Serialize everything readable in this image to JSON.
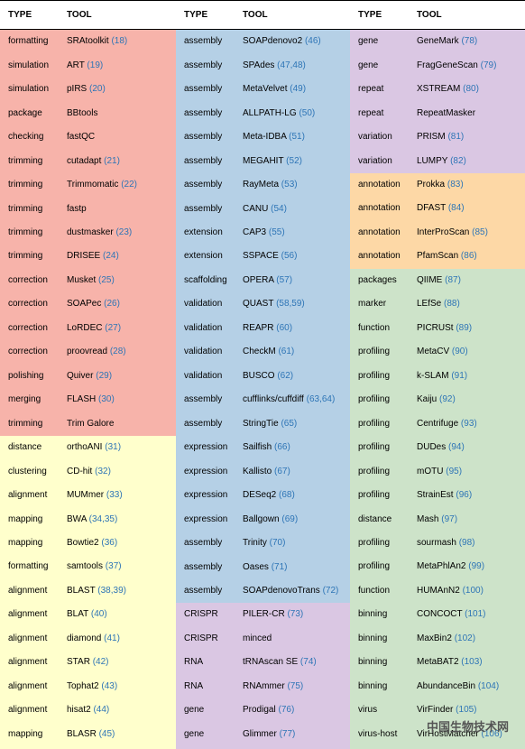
{
  "headers": [
    "TYPE",
    "TOOL"
  ],
  "columns": [
    {
      "sections": [
        {
          "color": "#f7b3aa",
          "rows": [
            {
              "type": "formatting",
              "tool": "SRAtoolkit",
              "ref": "(18)"
            },
            {
              "type": "simulation",
              "tool": "ART",
              "ref": "(19)"
            },
            {
              "type": "simulation",
              "tool": "pIRS",
              "ref": "(20)"
            },
            {
              "type": "package",
              "tool": "BBtools"
            },
            {
              "type": "checking",
              "tool": "fastQC"
            },
            {
              "type": "trimming",
              "tool": "cutadapt",
              "ref": "(21)"
            },
            {
              "type": "trimming",
              "tool": "Trimmomatic",
              "ref": "(22)"
            },
            {
              "type": "trimming",
              "tool": "fastp"
            },
            {
              "type": "trimming",
              "tool": "dustmasker",
              "ref": "(23)"
            },
            {
              "type": "trimming",
              "tool": "DRISEE",
              "ref": "(24)"
            },
            {
              "type": "correction",
              "tool": "Musket",
              "ref": "(25)"
            },
            {
              "type": "correction",
              "tool": "SOAPec",
              "ref": "(26)"
            },
            {
              "type": "correction",
              "tool": "LoRDEC",
              "ref": "(27)"
            },
            {
              "type": "correction",
              "tool": "proovread",
              "ref": "(28)"
            },
            {
              "type": "polishing",
              "tool": "Quiver",
              "ref": "(29)"
            },
            {
              "type": "merging",
              "tool": "FLASH",
              "ref": "(30)"
            },
            {
              "type": "trimming",
              "tool": "Trim Galore"
            }
          ]
        },
        {
          "color": "#ffffcc",
          "rows": [
            {
              "type": "distance",
              "tool": "orthoANI",
              "ref": "(31)"
            },
            {
              "type": "clustering",
              "tool": "CD-hit",
              "ref": "(32)"
            },
            {
              "type": "alignment",
              "tool": "MUMmer",
              "ref": "(33)"
            },
            {
              "type": "mapping",
              "tool": "BWA",
              "ref": "(34,35)"
            },
            {
              "type": "mapping",
              "tool": "Bowtie2",
              "ref": "(36)"
            },
            {
              "type": "formatting",
              "tool": "samtools",
              "ref": "(37)"
            },
            {
              "type": "alignment",
              "tool": "BLAST",
              "ref": "(38,39)"
            },
            {
              "type": "alignment",
              "tool": "BLAT",
              "ref": "(40)"
            },
            {
              "type": "alignment",
              "tool": "diamond",
              "ref": "(41)"
            },
            {
              "type": "alignment",
              "tool": "STAR",
              "ref": "(42)"
            },
            {
              "type": "alignment",
              "tool": "Tophat2",
              "ref": "(43)"
            },
            {
              "type": "alignment",
              "tool": "hisat2",
              "ref": "(44)"
            },
            {
              "type": "mapping",
              "tool": "BLASR",
              "ref": "(45)"
            }
          ]
        }
      ]
    },
    {
      "sections": [
        {
          "color": "#b5d0e6",
          "rows": [
            {
              "type": "assembly",
              "tool": "SOAPdenovo2",
              "ref": "(46)"
            },
            {
              "type": "assembly",
              "tool": "SPAdes",
              "ref": "(47,48)"
            },
            {
              "type": "assembly",
              "tool": "MetaVelvet",
              "ref": "(49)"
            },
            {
              "type": "assembly",
              "tool": "ALLPATH-LG",
              "ref": "(50)"
            },
            {
              "type": "assembly",
              "tool": "Meta-IDBA",
              "ref": "(51)"
            },
            {
              "type": "assembly",
              "tool": "MEGAHIT",
              "ref": "(52)"
            },
            {
              "type": "assembly",
              "tool": "RayMeta",
              "ref": "(53)"
            },
            {
              "type": "assembly",
              "tool": "CANU",
              "ref": "(54)"
            },
            {
              "type": "extension",
              "tool": "CAP3",
              "ref": "(55)"
            },
            {
              "type": "extension",
              "tool": "SSPACE",
              "ref": "(56)"
            },
            {
              "type": "scaffolding",
              "tool": "OPERA",
              "ref": "(57)"
            },
            {
              "type": "validation",
              "tool": "QUAST",
              "ref": "(58,59)"
            },
            {
              "type": "validation",
              "tool": "REAPR",
              "ref": "(60)"
            },
            {
              "type": "validation",
              "tool": "CheckM",
              "ref": "(61)"
            },
            {
              "type": "validation",
              "tool": "BUSCO",
              "ref": "(62)"
            },
            {
              "type": "assembly",
              "tool": "cufflinks/cuffdiff",
              "ref": "(63,64)"
            },
            {
              "type": "assembly",
              "tool": "StringTie",
              "ref": "(65)"
            },
            {
              "type": "expression",
              "tool": "Sailfish",
              "ref": "(66)"
            },
            {
              "type": "expression",
              "tool": "Kallisto",
              "ref": "(67)"
            },
            {
              "type": "expression",
              "tool": "DESeq2",
              "ref": "(68)"
            },
            {
              "type": "expression",
              "tool": "Ballgown",
              "ref": "(69)"
            },
            {
              "type": "assembly",
              "tool": "Trinity",
              "ref": "(70)"
            },
            {
              "type": "assembly",
              "tool": "Oases",
              "ref": "(71)"
            },
            {
              "type": "assembly",
              "tool": "SOAPdenovoTrans",
              "ref": "(72)"
            }
          ]
        },
        {
          "color": "#dac7e3",
          "rows": [
            {
              "type": "CRISPR",
              "tool": "PILER-CR",
              "ref": "(73)"
            },
            {
              "type": "CRISPR",
              "tool": "minced"
            },
            {
              "type": "RNA",
              "tool": "tRNAscan SE",
              "ref": "(74)"
            },
            {
              "type": "RNA",
              "tool": "RNAmmer",
              "ref": "(75)"
            },
            {
              "type": "gene",
              "tool": "Prodigal",
              "ref": "(76)"
            },
            {
              "type": "gene",
              "tool": "Glimmer",
              "ref": "(77)"
            }
          ]
        }
      ]
    },
    {
      "sections": [
        {
          "color": "#dac7e3",
          "rows": [
            {
              "type": "gene",
              "tool": "GeneMark",
              "ref": "(78)"
            },
            {
              "type": "gene",
              "tool": "FragGeneScan",
              "ref": "(79)"
            },
            {
              "type": "repeat",
              "tool": "XSTREAM",
              "ref": "(80)"
            },
            {
              "type": "repeat",
              "tool": "RepeatMasker"
            },
            {
              "type": "variation",
              "tool": "PRISM",
              "ref": "(81)"
            },
            {
              "type": "variation",
              "tool": "LUMPY",
              "ref": "(82)"
            }
          ]
        },
        {
          "color": "#fdd8a6",
          "rows": [
            {
              "type": "annotation",
              "tool": "Prokka",
              "ref": "(83)"
            },
            {
              "type": "annotation",
              "tool": "DFAST",
              "ref": "(84)"
            },
            {
              "type": "annotation",
              "tool": "InterProScan",
              "ref": "(85)"
            },
            {
              "type": "annotation",
              "tool": "PfamScan",
              "ref": "(86)"
            }
          ]
        },
        {
          "color": "#cde3c9",
          "rows": [
            {
              "type": "packages",
              "tool": "QIIME",
              "ref": "(87)"
            },
            {
              "type": "marker",
              "tool": "LEfSe",
              "ref": "(88)"
            },
            {
              "type": "function",
              "tool": "PICRUSt",
              "ref": "(89)"
            },
            {
              "type": "profiling",
              "tool": "MetaCV",
              "ref": "(90)"
            },
            {
              "type": "profiling",
              "tool": "k-SLAM",
              "ref": "(91)"
            },
            {
              "type": "profiling",
              "tool": "Kaiju",
              "ref": "(92)"
            },
            {
              "type": "profiling",
              "tool": "Centrifuge",
              "ref": "(93)"
            },
            {
              "type": "profiling",
              "tool": "DUDes",
              "ref": "(94)"
            },
            {
              "type": "profiling",
              "tool": "mOTU",
              "ref": "(95)"
            },
            {
              "type": "profiling",
              "tool": "StrainEst",
              "ref": "(96)"
            },
            {
              "type": "distance",
              "tool": "Mash",
              "ref": "(97)"
            },
            {
              "type": "profiling",
              "tool": "sourmash",
              "ref": "(98)"
            },
            {
              "type": "profiling",
              "tool": "MetaPhlAn2",
              "ref": "(99)"
            },
            {
              "type": "function",
              "tool": "HUMAnN2",
              "ref": "(100)"
            },
            {
              "type": "binning",
              "tool": "CONCOCT",
              "ref": "(101)"
            },
            {
              "type": "binning",
              "tool": "MaxBin2",
              "ref": "(102)"
            },
            {
              "type": "binning",
              "tool": "MetaBAT2",
              "ref": "(103)"
            },
            {
              "type": "binning",
              "tool": "AbundanceBin",
              "ref": "(104)"
            },
            {
              "type": "virus",
              "tool": "VirFinder",
              "ref": "(105)"
            },
            {
              "type": "virus-host",
              "tool": "VirHostMatcher",
              "ref": "(106)"
            }
          ]
        }
      ]
    }
  ],
  "watermark": "中国生物技术网"
}
